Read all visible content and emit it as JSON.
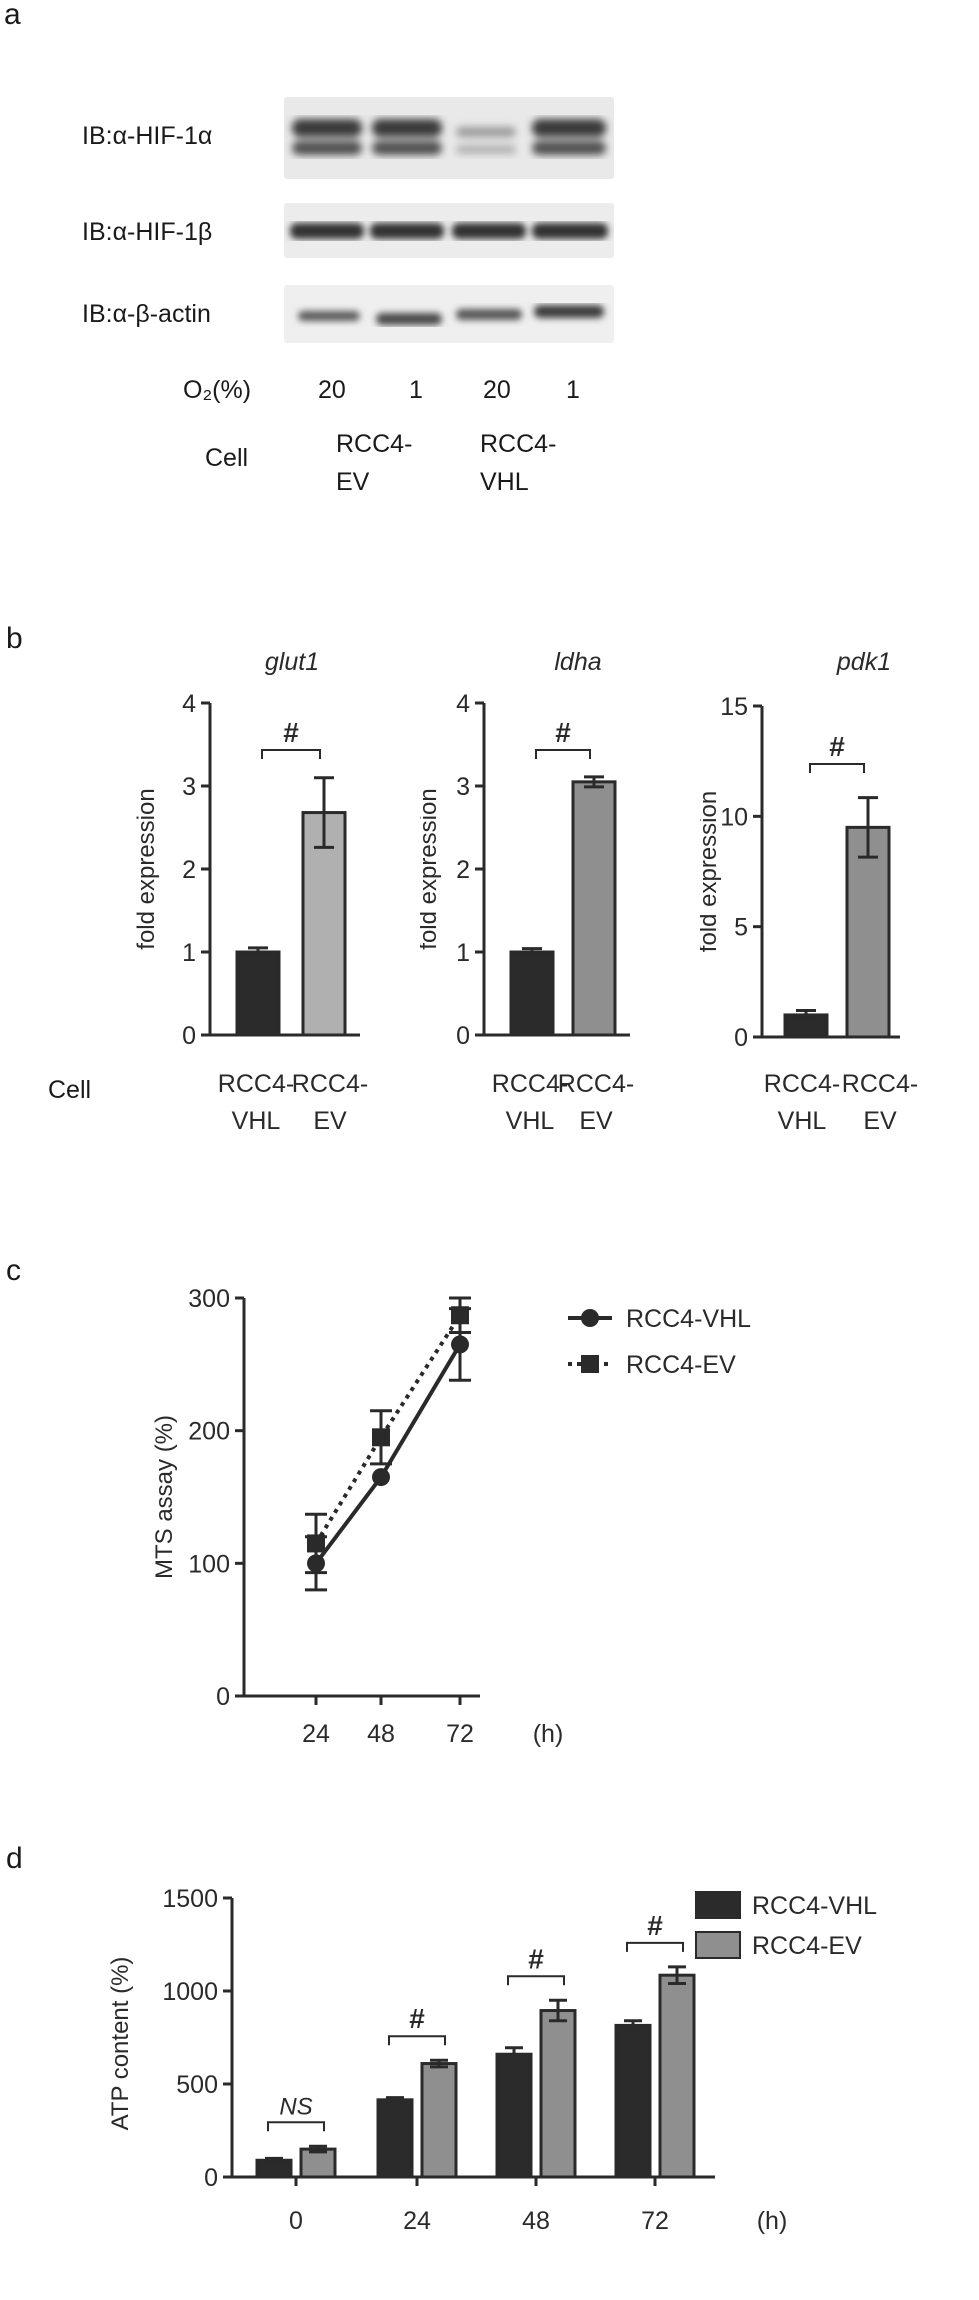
{
  "panel_a": {
    "letter": "a",
    "blots": [
      {
        "label": "IB:α-HIF-1α"
      },
      {
        "label": "IB:α-HIF-1β"
      },
      {
        "label": "IB:α-β-actin"
      }
    ],
    "o2_label": "O₂(%)",
    "o2_values": [
      "20",
      "1",
      "20",
      "1"
    ],
    "cell_label": "Cell",
    "cell_groups": [
      {
        "line1": "RCC4-",
        "line2": "EV"
      },
      {
        "line1": "RCC4-",
        "line2": "VHL"
      }
    ]
  },
  "panel_b": {
    "letter": "b",
    "cell_label": "Cell"
  },
  "panel_c": {
    "letter": "c"
  },
  "panel_d": {
    "letter": "d"
  },
  "chart_data": [
    {
      "id": "glut1",
      "type": "bar",
      "title": "glut1",
      "ylabel": "fold expression",
      "ylim": [
        0,
        4
      ],
      "yticks": [
        0,
        1,
        2,
        3,
        4
      ],
      "categories": [
        "RCC4-\nVHL",
        "RCC4-\nEV"
      ],
      "values": [
        1.0,
        2.68
      ],
      "errors": [
        0.05,
        0.42
      ],
      "colors": [
        "#2b2b2b",
        "#b0b0b0"
      ],
      "annotations": [
        {
          "text": "#",
          "between": [
            0,
            1
          ]
        }
      ]
    },
    {
      "id": "ldha",
      "type": "bar",
      "title": "ldha",
      "ylabel": "fold expression",
      "ylim": [
        0,
        4
      ],
      "yticks": [
        0,
        1,
        2,
        3,
        4
      ],
      "categories": [
        "RCC4-\nVHL",
        "RCC4-\nEV"
      ],
      "values": [
        1.0,
        3.05
      ],
      "errors": [
        0.04,
        0.06
      ],
      "colors": [
        "#2b2b2b",
        "#8f8f8f"
      ],
      "annotations": [
        {
          "text": "#",
          "between": [
            0,
            1
          ]
        }
      ]
    },
    {
      "id": "pdk1",
      "type": "bar",
      "title": "pdk1",
      "ylabel": "fold expression",
      "ylim": [
        0,
        15
      ],
      "yticks": [
        0,
        5,
        10,
        15
      ],
      "categories": [
        "RCC4-\nVHL",
        "RCC4-\nEV"
      ],
      "values": [
        1.0,
        9.5
      ],
      "errors": [
        0.2,
        1.35
      ],
      "colors": [
        "#2b2b2b",
        "#8f8f8f"
      ],
      "annotations": [
        {
          "text": "#",
          "between": [
            0,
            1
          ]
        }
      ]
    },
    {
      "id": "mts",
      "type": "line",
      "ylabel": "MTS assay  (%)",
      "xunit": "(h)",
      "ylim": [
        0,
        300
      ],
      "yticks": [
        0,
        100,
        200,
        300
      ],
      "x": [
        24,
        48,
        72
      ],
      "series": [
        {
          "name": "RCC4-VHL",
          "marker": "circle",
          "dash": false,
          "values": [
            100,
            165,
            265
          ],
          "errors": [
            20,
            0,
            27
          ]
        },
        {
          "name": "RCC4-EV",
          "marker": "square",
          "dash": true,
          "values": [
            115,
            195,
            287
          ],
          "errors": [
            22,
            20,
            13
          ]
        }
      ],
      "legend": "top-right"
    },
    {
      "id": "atp",
      "type": "bar",
      "ylabel": "ATP content  (%)",
      "xunit": "(h)",
      "ylim": [
        0,
        1500
      ],
      "yticks": [
        0,
        500,
        1000,
        1500
      ],
      "categories": [
        "0",
        "24",
        "48",
        "72"
      ],
      "series": [
        {
          "name": "RCC4-VHL",
          "color": "#2b2b2b",
          "values": [
            90,
            415,
            660,
            815
          ],
          "errors": [
            10,
            12,
            35,
            25
          ]
        },
        {
          "name": "RCC4-EV",
          "color": "#8f8f8f",
          "values": [
            150,
            610,
            895,
            1085
          ],
          "errors": [
            15,
            18,
            55,
            45
          ]
        }
      ],
      "annotations": [
        "NS",
        "#",
        "#",
        "#"
      ],
      "legend": "top-right"
    }
  ]
}
